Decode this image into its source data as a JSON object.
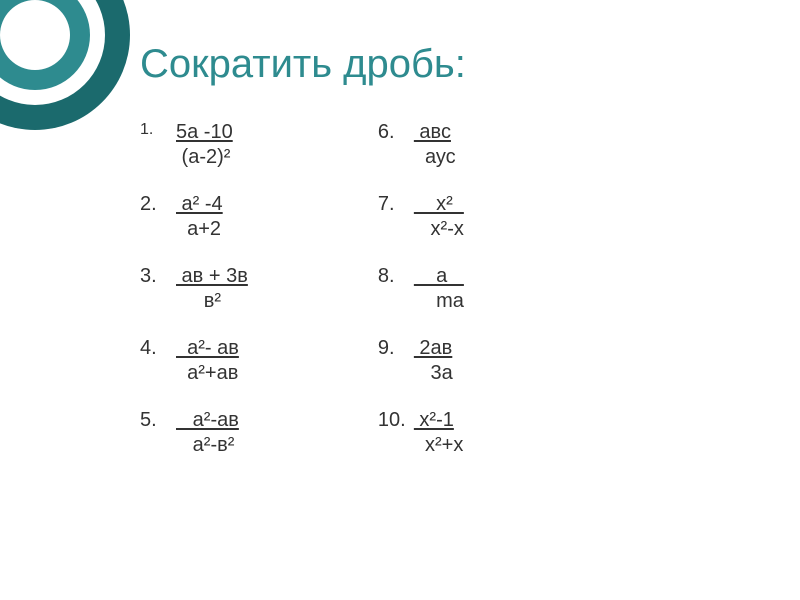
{
  "title": "Сократить дробь:",
  "colors": {
    "accent_dark": "#1b6a6d",
    "accent": "#2e8b8f",
    "text": "#333333",
    "background": "#ffffff"
  },
  "typography": {
    "title_fontsize": 40,
    "body_fontsize": 20,
    "font_family": "Arial"
  },
  "left_column": [
    {
      "marker": "1.",
      "marker_small": true,
      "numerator": "5а -10",
      "denominator": " (а-2)²"
    },
    {
      "marker": "2.",
      "numerator": " а² -4",
      "denominator": "  а+2"
    },
    {
      "marker": "3.",
      "numerator": " ав + 3в",
      "denominator": "     в²"
    },
    {
      "marker": "4.",
      "numerator": "  а²- ав",
      "denominator": "  а²+ав"
    },
    {
      "marker": "5.",
      "numerator": "   а²-ав",
      "denominator": "   а²-в²"
    }
  ],
  "right_column": [
    {
      "marker": "6.",
      "numerator": " авс",
      "denominator": "  аус"
    },
    {
      "marker": "7.",
      "numerator": "    х²  ",
      "denominator": "   х²-х"
    },
    {
      "marker": "8.",
      "numerator": "    а   ",
      "denominator": "    mа"
    },
    {
      "marker": "9.",
      "numerator": " 2ав",
      "denominator": "   3а"
    },
    {
      "marker": "10.",
      "numerator": " х²-1",
      "denominator": "  х²+х"
    }
  ]
}
